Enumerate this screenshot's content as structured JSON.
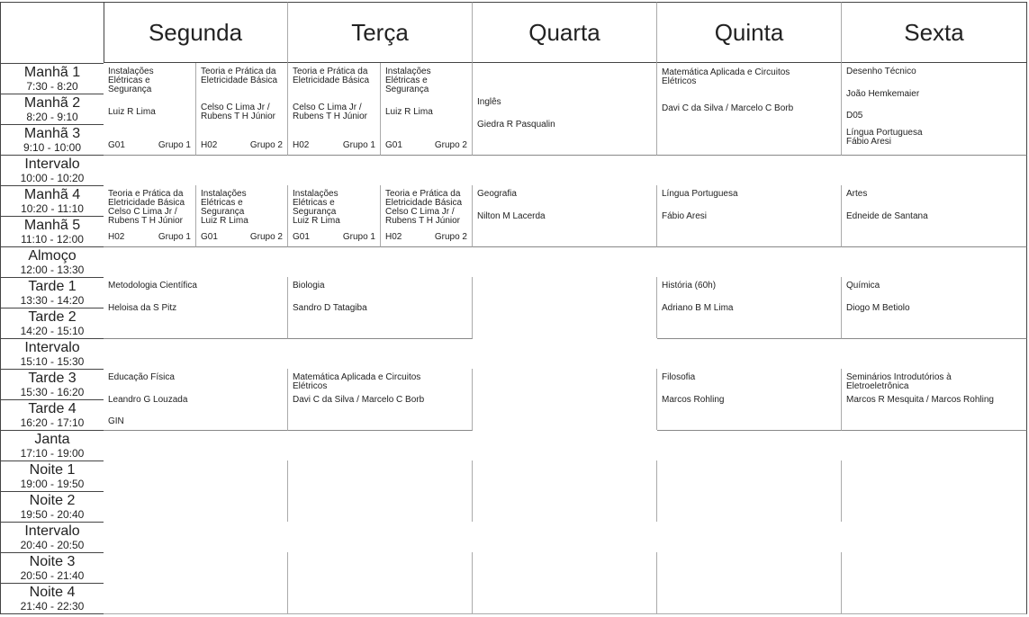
{
  "days": [
    "Segunda",
    "Terça",
    "Quarta",
    "Quinta",
    "Sexta"
  ],
  "periods": [
    {
      "name": "Manhã 1",
      "time": "7:30 - 8:20"
    },
    {
      "name": "Manhã 2",
      "time": "8:20 - 9:10"
    },
    {
      "name": "Manhã 3",
      "time": "9:10 - 10:00"
    },
    {
      "name": "Intervalo",
      "time": "10:00 - 10:20",
      "break": true
    },
    {
      "name": "Manhã 4",
      "time": "10:20 - 11:10"
    },
    {
      "name": "Manhã 5",
      "time": "11:10 - 12:00"
    },
    {
      "name": "Almoço",
      "time": "12:00 - 13:30",
      "break": true
    },
    {
      "name": "Tarde 1",
      "time": "13:30 - 14:20"
    },
    {
      "name": "Tarde 2",
      "time": "14:20 - 15:10"
    },
    {
      "name": "Intervalo",
      "time": "15:10 - 15:30",
      "break": true
    },
    {
      "name": "Tarde 3",
      "time": "15:30 - 16:20"
    },
    {
      "name": "Tarde 4",
      "time": "16:20 - 17:10"
    },
    {
      "name": "Janta",
      "time": "17:10 - 19:00",
      "break": true
    },
    {
      "name": "Noite 1",
      "time": "19:00 - 19:50"
    },
    {
      "name": "Noite 2",
      "time": "19:50 - 20:40"
    },
    {
      "name": "Intervalo",
      "time": "20:40 - 20:50",
      "break": true
    },
    {
      "name": "Noite 3",
      "time": "20:50 - 21:40"
    },
    {
      "name": "Noite 4",
      "time": "21:40 - 22:30"
    }
  ],
  "classes": [
    {
      "day": "Segunda",
      "from": "Manhã 1",
      "to": "Manhã 3",
      "half": "left",
      "subject": "Instalações\nElétricas e\nSegurança",
      "teacher": "Luiz R Lima",
      "room": "G01",
      "group": "Grupo 1"
    },
    {
      "day": "Segunda",
      "from": "Manhã 1",
      "to": "Manhã 3",
      "half": "right",
      "subject": "Teoria e Prática da\nEletricidade Básica",
      "teacher": "Celso C Lima Jr /\nRubens T H  Júnior",
      "room": "H02",
      "group": "Grupo 2"
    },
    {
      "day": "Terça",
      "from": "Manhã 1",
      "to": "Manhã 3",
      "half": "left",
      "subject": "Teoria e Prática da\nEletricidade Básica",
      "teacher": "Celso C Lima Jr /\nRubens T H  Júnior",
      "room": "H02",
      "group": "Grupo 1"
    },
    {
      "day": "Terça",
      "from": "Manhã 1",
      "to": "Manhã 3",
      "half": "right",
      "subject": "Instalações\nElétricas e\nSegurança",
      "teacher": "Luiz R Lima",
      "room": "G01",
      "group": "Grupo 2"
    },
    {
      "day": "Quarta",
      "from": "Manhã 2",
      "to": "Manhã 3",
      "subject": "Inglês",
      "teacher": "Giedra R  Pasqualin"
    },
    {
      "day": "Quinta",
      "from": "Manhã 1",
      "to": "Manhã 3",
      "subject": "Matemática Aplicada e Circuitos\nElétricos",
      "teacher": "Davi C da Silva / Marcelo C Borb"
    },
    {
      "day": "Sexta",
      "from": "Manhã 1",
      "to": "Manhã 2",
      "subject": "Desenho Técnico",
      "teacher": "João Hemkemaier",
      "room": "D05"
    },
    {
      "day": "Sexta",
      "from": "Manhã 3",
      "to": "Manhã 3",
      "subject": "Língua Portuguesa",
      "teacher": "Fábio Aresi"
    },
    {
      "day": "Segunda",
      "from": "Manhã 4",
      "to": "Manhã 5",
      "half": "left",
      "subject": "Teoria e Prática da\nEletricidade Básica",
      "teacher": "Celso C Lima Jr /\nRubens T H  Júnior",
      "room": "H02",
      "group": "Grupo 1"
    },
    {
      "day": "Segunda",
      "from": "Manhã 4",
      "to": "Manhã 5",
      "half": "right",
      "subject": "Instalações\nElétricas e\nSegurança",
      "teacher": "Luiz R Lima",
      "room": "G01",
      "group": "Grupo 2"
    },
    {
      "day": "Terça",
      "from": "Manhã 4",
      "to": "Manhã 5",
      "half": "left",
      "subject": "Instalações\nElétricas e\nSegurança",
      "teacher": "Luiz R Lima",
      "room": "G01",
      "group": "Grupo 1"
    },
    {
      "day": "Terça",
      "from": "Manhã 4",
      "to": "Manhã 5",
      "half": "right",
      "subject": "Teoria e Prática da\nEletricidade Básica",
      "teacher": "Celso C Lima Jr /\nRubens T H  Júnior",
      "room": "H02",
      "group": "Grupo 2"
    },
    {
      "day": "Quarta",
      "from": "Manhã 4",
      "to": "Manhã 5",
      "subject": "Geografia",
      "teacher": "Nilton M Lacerda"
    },
    {
      "day": "Quinta",
      "from": "Manhã 4",
      "to": "Manhã 5",
      "subject": "Língua Portuguesa",
      "teacher": "Fábio Aresi"
    },
    {
      "day": "Sexta",
      "from": "Manhã 4",
      "to": "Manhã 5",
      "subject": "Artes",
      "teacher": "Edneide de Santana"
    },
    {
      "day": "Segunda",
      "from": "Tarde 1",
      "to": "Tarde 2",
      "subject": "Metodologia Científica",
      "teacher": "Heloisa da S Pitz"
    },
    {
      "day": "Terça",
      "from": "Tarde 1",
      "to": "Tarde 2",
      "subject": "Biologia",
      "teacher": "Sandro D Tatagiba"
    },
    {
      "day": "Quinta",
      "from": "Tarde 1",
      "to": "Tarde 2",
      "subject": "História (60h)",
      "teacher": "Adriano B M Lima"
    },
    {
      "day": "Sexta",
      "from": "Tarde 1",
      "to": "Tarde 2",
      "subject": "Química",
      "teacher": "Diogo M  Betiolo"
    },
    {
      "day": "Segunda",
      "from": "Tarde 3",
      "to": "Tarde 4",
      "subject": "Educação Física",
      "teacher": "Leandro G Louzada",
      "room": "GIN"
    },
    {
      "day": "Terça",
      "from": "Tarde 3",
      "to": "Tarde 4",
      "subject": "Matemática Aplicada e Circuitos\nElétricos",
      "teacher": "Davi C da Silva / Marcelo C Borb"
    },
    {
      "day": "Quinta",
      "from": "Tarde 3",
      "to": "Tarde 4",
      "subject": "Filosofia",
      "teacher": "Marcos Rohling"
    },
    {
      "day": "Sexta",
      "from": "Tarde 3",
      "to": "Tarde 4",
      "subject": "Seminários Introdutórios à\nEletroeletrônica",
      "teacher": "Marcos R Mesquita / Marcos Rohling"
    }
  ]
}
